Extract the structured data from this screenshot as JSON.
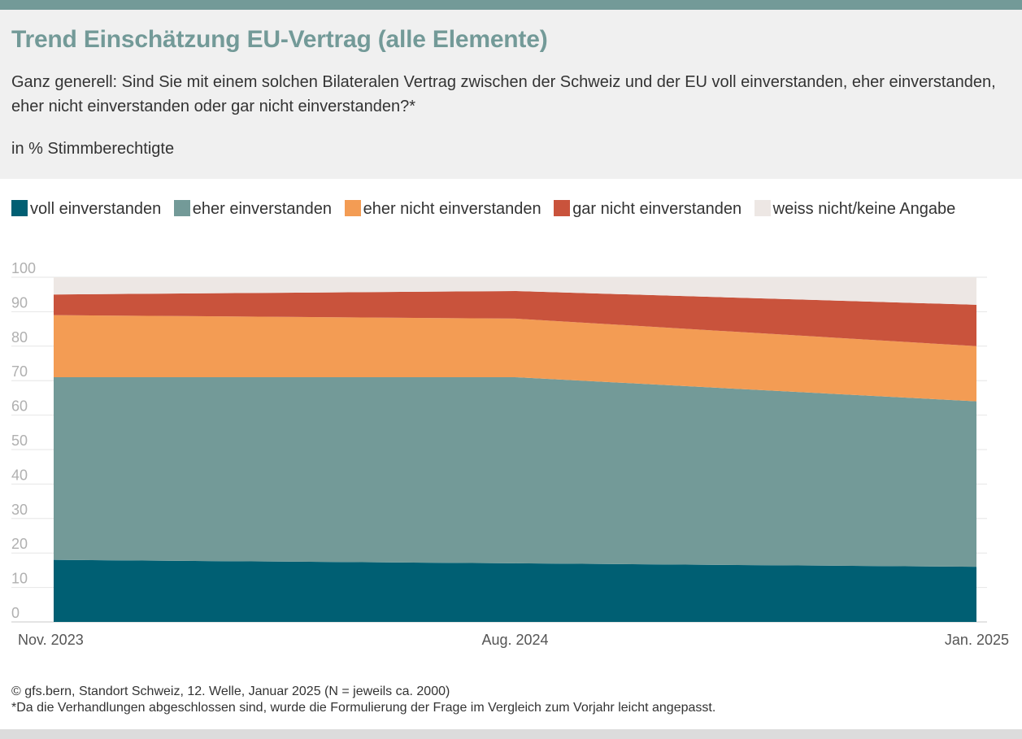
{
  "header": {
    "title": "Trend Einschätzung EU-Vertrag (alle Elemente)",
    "subtitle": "Ganz generell: Sind Sie mit einem solchen Bilateralen Vertrag zwischen der Schweiz und der EU voll einverstanden, eher einverstanden, eher nicht einverstanden oder gar nicht einverstanden?*",
    "unit": "in % Stimmberechtigte"
  },
  "colors": {
    "accent": "#739a98",
    "voll": "#005f73",
    "eher": "#739a98",
    "eher_nicht": "#f39c54",
    "gar_nicht": "#c9533c",
    "weiss_nicht": "#ede7e4"
  },
  "chart_data": {
    "type": "area",
    "stacked": true,
    "title": "Trend Einschätzung EU-Vertrag (alle Elemente)",
    "ylabel": "in % Stimmberechtigte",
    "xlabel": "",
    "x": [
      "Nov. 2023",
      "Aug. 2024",
      "Jan. 2025"
    ],
    "ylim": [
      0,
      100
    ],
    "yticks": [
      0,
      10,
      20,
      30,
      40,
      50,
      60,
      70,
      80,
      90,
      100
    ],
    "grid": true,
    "legend": "top",
    "series": [
      {
        "name": "voll einverstanden",
        "values": [
          18,
          17,
          16
        ]
      },
      {
        "name": "eher einverstanden",
        "values": [
          53,
          54,
          48
        ]
      },
      {
        "name": "eher nicht einverstanden",
        "values": [
          18,
          17,
          16
        ]
      },
      {
        "name": "gar nicht einverstanden",
        "values": [
          6,
          8,
          12
        ]
      },
      {
        "name": "weiss nicht/keine Angabe",
        "values": [
          5,
          4,
          8
        ]
      }
    ]
  },
  "footer": {
    "source": "© gfs.bern, Standort Schweiz, 12. Welle, Januar 2025 (N = jeweils ca. 2000)",
    "note": "*Da die Verhandlungen abgeschlossen sind, wurde die Formulierung der Frage im Vergleich zum Vorjahr leicht angepasst."
  }
}
